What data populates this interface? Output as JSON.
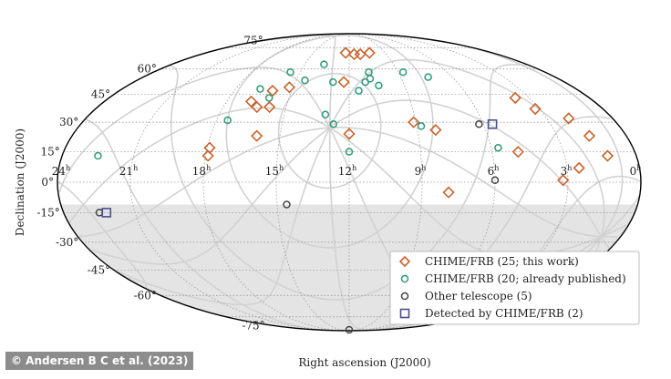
{
  "credit": "© Andersen B C et al. (2023)",
  "chart_data": {
    "type": "scatter",
    "projection": "mollweide",
    "title": "",
    "xlabel": "Right ascension (J2000)",
    "ylabel": "Declination (J2000)",
    "ra_direction": "increasing-to-left",
    "xlim": [
      0,
      24
    ],
    "ylim": [
      -90,
      90
    ],
    "grid": true,
    "galactic_grid": true,
    "shaded_region": {
      "description": "below declination",
      "dec_below": -11
    },
    "ra_tick_labels": [
      {
        "ra": 24,
        "label": "24h"
      },
      {
        "ra": 21,
        "label": "21h"
      },
      {
        "ra": 18,
        "label": "18h"
      },
      {
        "ra": 15,
        "label": "15h"
      },
      {
        "ra": 12,
        "label": "12h"
      },
      {
        "ra": 9,
        "label": "9h"
      },
      {
        "ra": 6,
        "label": "6h"
      },
      {
        "ra": 3,
        "label": "3h"
      },
      {
        "ra": 0,
        "label": "0h"
      }
    ],
    "dec_tick_labels": [
      {
        "dec": 75,
        "label": "75°"
      },
      {
        "dec": 60,
        "label": "60°"
      },
      {
        "dec": 45,
        "label": "45°"
      },
      {
        "dec": 30,
        "label": "30°"
      },
      {
        "dec": 15,
        "label": "15°"
      },
      {
        "dec": 0,
        "label": "0°"
      },
      {
        "dec": -15,
        "label": "-15°"
      },
      {
        "dec": -30,
        "label": "-30°"
      },
      {
        "dec": -45,
        "label": "-45°"
      },
      {
        "dec": -60,
        "label": "-60°"
      },
      {
        "dec": -75,
        "label": "-75°"
      }
    ],
    "legend_position": "bottom-right",
    "series": [
      {
        "name": "CHIME/FRB (25; this work)",
        "marker": "diamond",
        "color": "#c8622a",
        "points": [
          [
            12.3,
            71
          ],
          [
            11.6,
            70
          ],
          [
            11.1,
            70
          ],
          [
            10.3,
            71
          ],
          [
            12.3,
            52
          ],
          [
            15.2,
            49
          ],
          [
            16.0,
            47
          ],
          [
            16.8,
            41
          ],
          [
            16.4,
            38
          ],
          [
            15.8,
            38
          ],
          [
            16.0,
            23
          ],
          [
            12.0,
            24
          ],
          [
            9.1,
            30
          ],
          [
            8.2,
            26
          ],
          [
            3.7,
            43
          ],
          [
            3.2,
            37
          ],
          [
            2.0,
            32
          ],
          [
            1.6,
            23
          ],
          [
            1.2,
            13
          ],
          [
            4.9,
            15
          ],
          [
            17.9,
            17
          ],
          [
            17.9,
            13
          ],
          [
            2.5,
            7
          ],
          [
            3.2,
            1
          ],
          [
            7.9,
            -5
          ]
        ]
      },
      {
        "name": "CHIME/FRB (20; already published)",
        "marker": "circle",
        "color": "#2b9a78",
        "points": [
          [
            13.7,
            63
          ],
          [
            15.6,
            58
          ],
          [
            14.5,
            53
          ],
          [
            16.7,
            48
          ],
          [
            16.0,
            43
          ],
          [
            12.9,
            52
          ],
          [
            10.8,
            58
          ],
          [
            8.7,
            58
          ],
          [
            7.4,
            55
          ],
          [
            10.8,
            54
          ],
          [
            11.1,
            52
          ],
          [
            11.5,
            47
          ],
          [
            10.4,
            50
          ],
          [
            13.1,
            34
          ],
          [
            12.7,
            29
          ],
          [
            17.5,
            31
          ],
          [
            8.8,
            28
          ],
          [
            5.7,
            17
          ],
          [
            12.0,
            15
          ],
          [
            22.5,
            13
          ]
        ]
      },
      {
        "name": "Other telescope (5)",
        "marker": "circle",
        "color": "#444444",
        "points": [
          [
            14.6,
            -11
          ],
          [
            12.0,
            -88
          ],
          [
            6.0,
            1
          ],
          [
            6.2,
            29
          ],
          [
            22.5,
            -15
          ]
        ]
      },
      {
        "name": "Detected by CHIME/FRB (2)",
        "marker": "square",
        "color": "#4a4f8a",
        "points": [
          [
            5.6,
            29
          ],
          [
            22.2,
            -15
          ]
        ]
      }
    ]
  }
}
